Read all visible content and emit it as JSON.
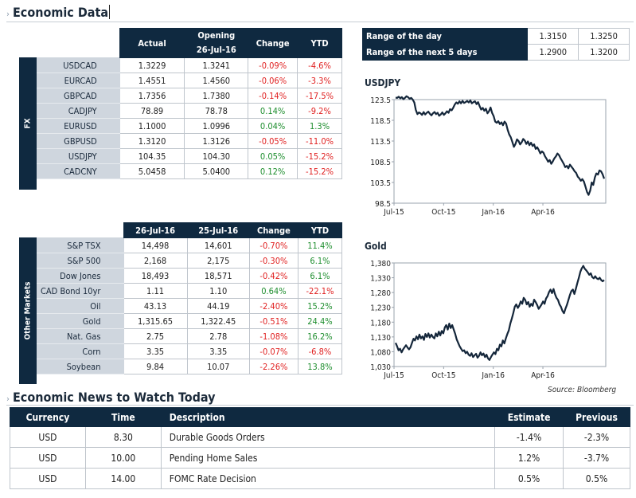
{
  "header": {
    "chevron": "›",
    "title": "Economic Data"
  },
  "fx": {
    "sidebar_label": "FX",
    "columns": [
      "Actual",
      "Opening\n26-Jul-16",
      "Change",
      "YTD"
    ],
    "col_opening_line1": "Opening",
    "col_opening_line2": "26-Jul-16",
    "rows": [
      {
        "name": "USDCAD",
        "actual": "1.3229",
        "opening": "1.3241",
        "change": "-0.09%",
        "ytd": "-4.6%"
      },
      {
        "name": "EURCAD",
        "actual": "1.4551",
        "opening": "1.4560",
        "change": "-0.06%",
        "ytd": "-3.3%"
      },
      {
        "name": "GBPCAD",
        "actual": "1.7356",
        "opening": "1.7380",
        "change": "-0.14%",
        "ytd": "-17.5%"
      },
      {
        "name": "CADJPY",
        "actual": "78.89",
        "opening": "78.78",
        "change": "0.14%",
        "ytd": "-9.2%"
      },
      {
        "name": "EURUSD",
        "actual": "1.1000",
        "opening": "1.0996",
        "change": "0.04%",
        "ytd": "1.3%"
      },
      {
        "name": "GBPUSD",
        "actual": "1.3120",
        "opening": "1.3126",
        "change": "-0.05%",
        "ytd": "-11.0%"
      },
      {
        "name": "USDJPY",
        "actual": "104.35",
        "opening": "104.30",
        "change": "0.05%",
        "ytd": "-15.2%"
      },
      {
        "name": "CADCNY",
        "actual": "5.0458",
        "opening": "5.0400",
        "change": "0.12%",
        "ytd": "-15.2%"
      }
    ]
  },
  "markets": {
    "sidebar_label": "Other Markets",
    "col1": "26-Jul-16",
    "col2": "25-Jul-16",
    "col3": "Change",
    "col4": "YTD",
    "rows": [
      {
        "name": "S&P TSX",
        "d1": "14,498",
        "d2": "14,601",
        "change": "-0.70%",
        "ytd": "11.4%"
      },
      {
        "name": "S&P 500",
        "d1": "2,168",
        "d2": "2,175",
        "change": "-0.30%",
        "ytd": "6.1%"
      },
      {
        "name": "Dow Jones",
        "d1": "18,493",
        "d2": "18,571",
        "change": "-0.42%",
        "ytd": "6.1%"
      },
      {
        "name": "CAD Bond 10yr",
        "d1": "1.11",
        "d2": "1.10",
        "change": "0.64%",
        "ytd": "-22.1%"
      },
      {
        "name": "Oil",
        "d1": "43.13",
        "d2": "44.19",
        "change": "-2.40%",
        "ytd": "15.2%"
      },
      {
        "name": "Gold",
        "d1": "1,315.65",
        "d2": "1,322.45",
        "change": "-0.51%",
        "ytd": "24.4%"
      },
      {
        "name": "Nat. Gas",
        "d1": "2.75",
        "d2": "2.78",
        "change": "-1.08%",
        "ytd": "16.2%"
      },
      {
        "name": "Corn",
        "d1": "3.35",
        "d2": "3.35",
        "change": "-0.07%",
        "ytd": "-6.8%"
      },
      {
        "name": "Soybean",
        "d1": "9.84",
        "d2": "10.07",
        "change": "-2.26%",
        "ytd": "13.8%"
      }
    ]
  },
  "range": {
    "rows": [
      {
        "label": "Range of the day",
        "low": "1.3150",
        "high": "1.3250"
      },
      {
        "label": "Range of the next 5 days",
        "low": "1.2900",
        "high": "1.3200"
      }
    ]
  },
  "colors": {
    "navy": "#0f2940",
    "negative": "#e02020",
    "positive": "#1e8e2e",
    "label_bg": "#cfd6de",
    "line": "#14263a"
  },
  "chart_data": [
    {
      "type": "line",
      "title": "USDJPY",
      "x_ticks": [
        "Jul-15",
        "Oct-15",
        "Jan-16",
        "Apr-16"
      ],
      "y_ticks": [
        "123.5",
        "118.5",
        "113.5",
        "108.5",
        "103.5",
        "98.5"
      ],
      "ylim": [
        98.5,
        123.5
      ],
      "series": [
        {
          "values": [
            124.0,
            123.9,
            124.2,
            123.8,
            124.1,
            123.6,
            123.9,
            124.3,
            124.1,
            123.7,
            123.9,
            123.5,
            122.8,
            121.0,
            120.0,
            120.4,
            120.2,
            119.8,
            120.5,
            119.9,
            120.3,
            120.6,
            120.1,
            119.7,
            120.2,
            120.5,
            120.0,
            120.3,
            119.6,
            119.9,
            120.4,
            119.8,
            120.2,
            120.7,
            120.3,
            121.2,
            120.9,
            121.5,
            122.3,
            122.8,
            122.5,
            123.1,
            122.6,
            123.2,
            122.7,
            122.9,
            123.2,
            122.8,
            123.3,
            122.6,
            122.9,
            123.1,
            122.4,
            122.9,
            121.9,
            121.1,
            121.5,
            120.8,
            121.3,
            120.2,
            120.7,
            121.6,
            120.3,
            119.5,
            118.2,
            117.9,
            118.3,
            117.6,
            118.0,
            117.3,
            118.2,
            117.7,
            116.2,
            115.1,
            114.4,
            113.3,
            112.1,
            112.8,
            113.9,
            113.5,
            112.7,
            113.2,
            114.0,
            113.6,
            112.8,
            113.4,
            112.5,
            113.1,
            112.3,
            112.7,
            111.6,
            112.0,
            111.3,
            110.5,
            111.0,
            110.7,
            109.8,
            109.2,
            108.5,
            108.9,
            108.0,
            108.6,
            109.3,
            109.8,
            110.5,
            110.1,
            109.3,
            108.7,
            108.0,
            107.2,
            107.5,
            106.9,
            107.8,
            107.3,
            106.8,
            106.2,
            105.8,
            104.9,
            104.5,
            103.9,
            104.3,
            103.7,
            102.5,
            101.2,
            100.5,
            101.5,
            103.5,
            102.9,
            104.7,
            105.7,
            105.4,
            106.4,
            106.2,
            105.5,
            104.4
          ]
        }
      ]
    },
    {
      "type": "line",
      "title": "Gold",
      "x_ticks": [
        "Jul-15",
        "Oct-15",
        "Jan-16",
        "Apr-16"
      ],
      "y_ticks": [
        "1,380",
        "1,330",
        "1,280",
        "1,230",
        "1,180",
        "1,130",
        "1,080",
        "1,030"
      ],
      "ylim": [
        1030,
        1380
      ],
      "series": [
        {
          "values": [
            1110,
            1098,
            1085,
            1090,
            1078,
            1088,
            1095,
            1102,
            1094,
            1088,
            1095,
            1110,
            1124,
            1118,
            1132,
            1122,
            1138,
            1125,
            1132,
            1120,
            1140,
            1130,
            1142,
            1128,
            1138,
            1130,
            1125,
            1142,
            1132,
            1148,
            1135,
            1150,
            1142,
            1162,
            1170,
            1155,
            1175,
            1160,
            1170,
            1155,
            1140,
            1122,
            1110,
            1098,
            1090,
            1082,
            1085,
            1075,
            1080,
            1070,
            1066,
            1075,
            1062,
            1068,
            1073,
            1060,
            1066,
            1078,
            1068,
            1074,
            1062,
            1070,
            1058,
            1052,
            1062,
            1070,
            1078,
            1072,
            1090,
            1085,
            1104,
            1098,
            1118,
            1108,
            1125,
            1140,
            1152,
            1175,
            1192,
            1210,
            1232,
            1240,
            1228,
            1236,
            1250,
            1242,
            1262,
            1255,
            1240,
            1248,
            1232,
            1242,
            1235,
            1256,
            1248,
            1238,
            1225,
            1232,
            1240,
            1250,
            1242,
            1260,
            1268,
            1282,
            1290,
            1278,
            1292,
            1275,
            1262,
            1255,
            1240,
            1232,
            1218,
            1210,
            1225,
            1238,
            1255,
            1272,
            1285,
            1290,
            1275,
            1292,
            1312,
            1330,
            1350,
            1362,
            1370,
            1360,
            1355,
            1348,
            1340,
            1345,
            1332,
            1328,
            1335,
            1328,
            1325,
            1330,
            1322,
            1318,
            1322
          ]
        }
      ]
    }
  ],
  "source_note": "Source: Bloomberg",
  "news": {
    "chevron": "›",
    "title": "Economic News to Watch Today",
    "columns": {
      "currency": "Currency",
      "time": "Time",
      "description": "Description",
      "estimate": "Estimate",
      "previous": "Previous"
    },
    "rows": [
      {
        "currency": "USD",
        "time": "8.30",
        "description": "Durable Goods Orders",
        "estimate": "-1.4%",
        "previous": "-2.3%"
      },
      {
        "currency": "USD",
        "time": "10.00",
        "description": "Pending Home Sales",
        "estimate": "1.2%",
        "previous": "-3.7%"
      },
      {
        "currency": "USD",
        "time": "14.00",
        "description": "FOMC Rate Decision",
        "estimate": "0.5%",
        "previous": "0.5%"
      }
    ]
  }
}
